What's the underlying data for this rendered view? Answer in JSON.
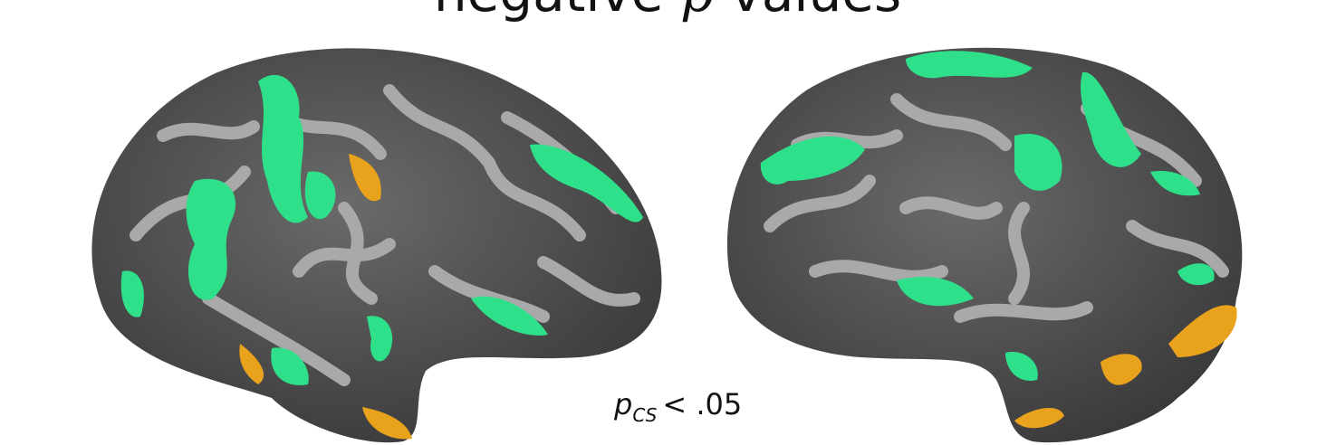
{
  "title": {
    "prefix": "negative",
    "variable": "p",
    "suffix": "values"
  },
  "threshold": {
    "symbol": "p",
    "subscript": "CS",
    "text": "< .05"
  }
}
